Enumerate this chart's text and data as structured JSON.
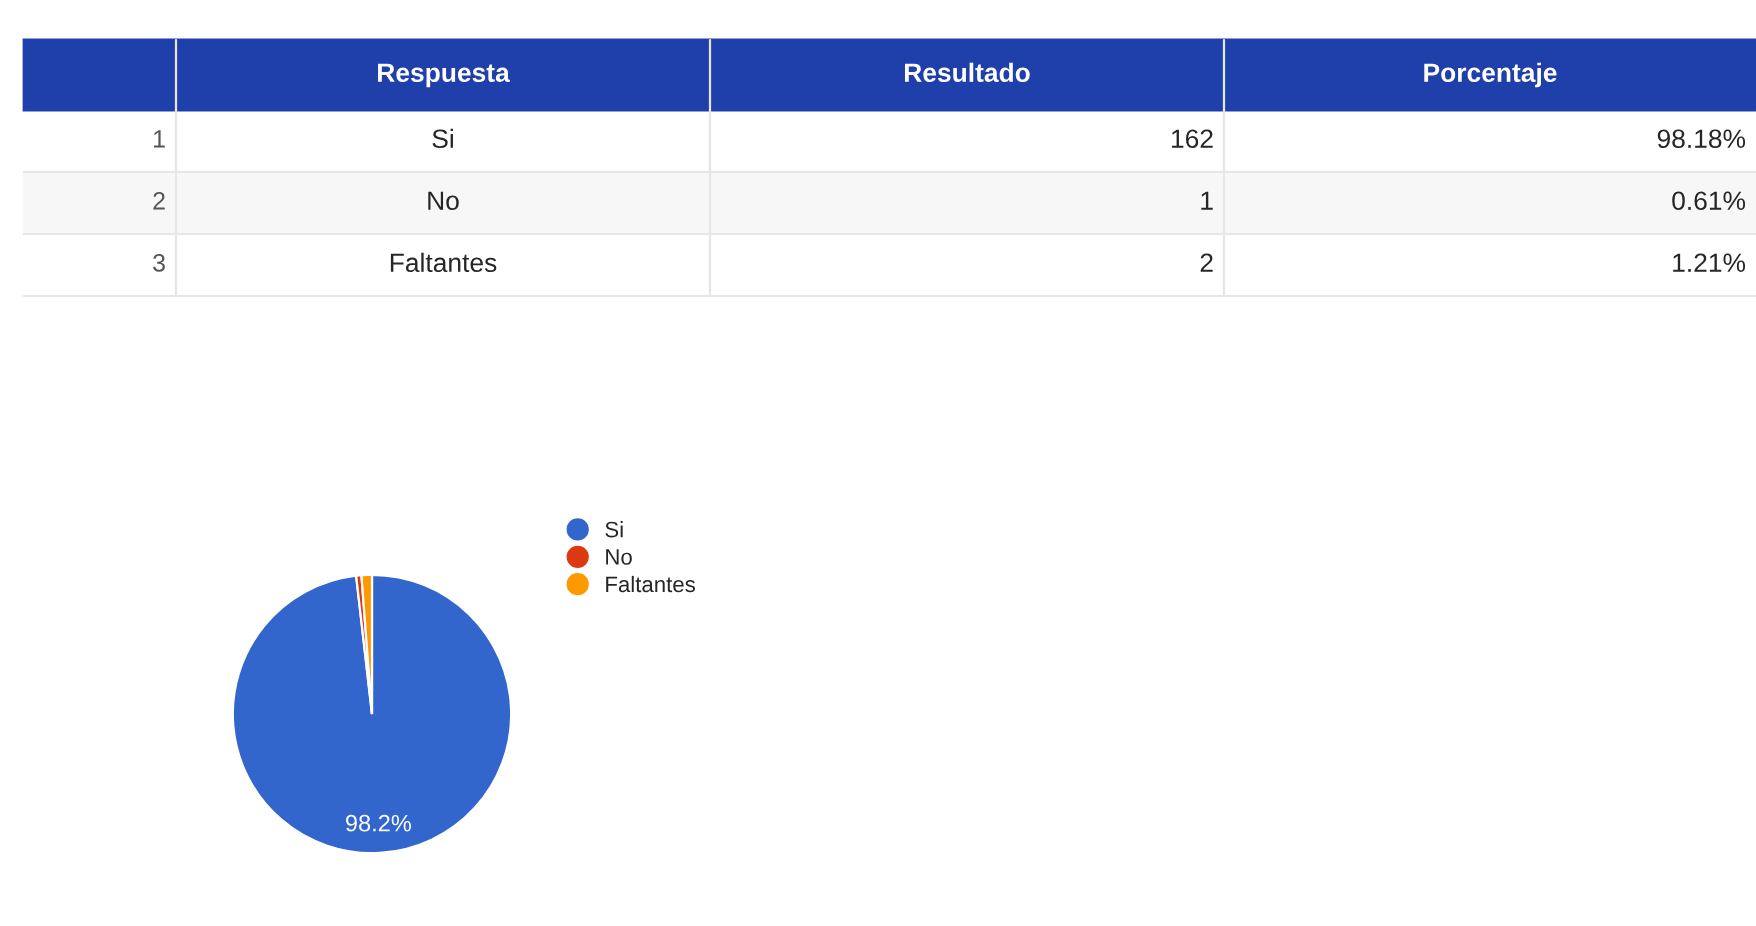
{
  "chart_data": {
    "type": "pie",
    "categories": [
      "Si",
      "No",
      "Faltantes"
    ],
    "values": [
      98.18,
      0.61,
      1.21
    ],
    "colors": [
      "#3366cc",
      "#dc3912",
      "#ff9900"
    ],
    "value_labels": [
      "98.2%",
      null,
      null
    ],
    "legend": "top right",
    "annotations": [
      "Respuesta",
      "Resultado",
      "Porcentaje",
      "1",
      "2",
      "3",
      "162",
      "1",
      "2",
      "98.18%",
      "0.61%",
      "1.21%"
    ]
  }
}
